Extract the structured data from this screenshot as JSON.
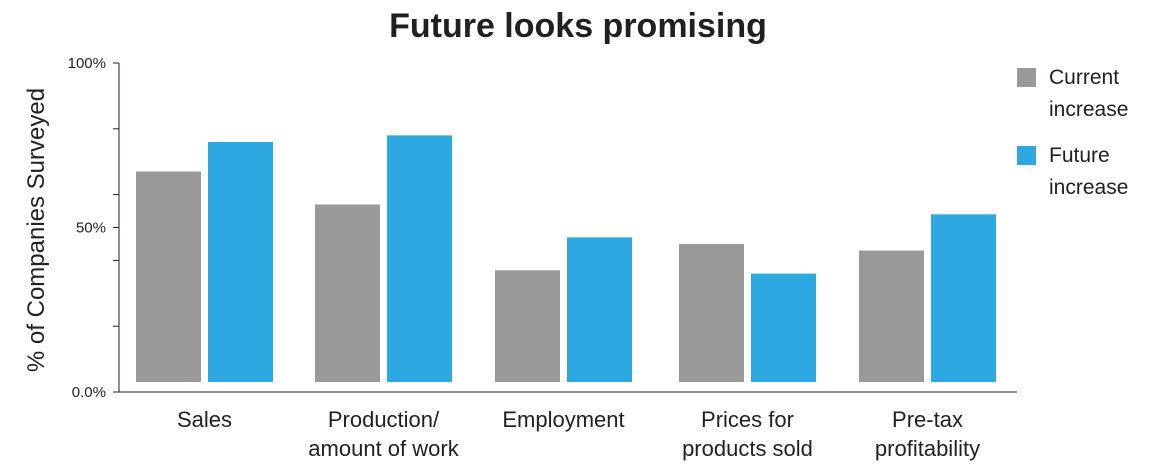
{
  "chart_data": {
    "type": "bar",
    "title": "Future looks promising",
    "xlabel": "",
    "ylabel": "% of Companies Surveyed",
    "ylim": [
      0,
      100
    ],
    "yticks": [
      {
        "value": 100,
        "label": "100%"
      },
      {
        "value": 80,
        "label": ""
      },
      {
        "value": 60,
        "label": ""
      },
      {
        "value": 50,
        "label": "50%"
      },
      {
        "value": 40,
        "label": ""
      },
      {
        "value": 20,
        "label": ""
      },
      {
        "value": 0,
        "label": "0.0%"
      }
    ],
    "categories": [
      [
        "Sales"
      ],
      [
        "Production/",
        "amount of work"
      ],
      [
        "Employment"
      ],
      [
        "Prices for",
        "products sold"
      ],
      [
        "Pre-tax",
        "profitability"
      ]
    ],
    "series": [
      {
        "name": [
          "Current",
          "increase"
        ],
        "color": "#999999",
        "values": [
          67,
          57,
          37,
          45,
          43
        ]
      },
      {
        "name": [
          "Future",
          "increase"
        ],
        "color": "#2ea8e0",
        "values": [
          76,
          78,
          47,
          36,
          54
        ]
      }
    ],
    "legend": "top-right",
    "grid": false
  }
}
